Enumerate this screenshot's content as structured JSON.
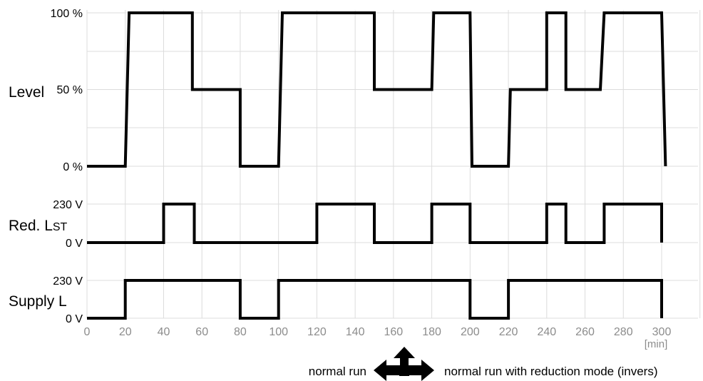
{
  "chart_data": {
    "type": "line",
    "x_unit": "[min]",
    "xlim": [
      0,
      320
    ],
    "x_ticks": [
      "0",
      "20",
      "40",
      "60",
      "80",
      "100",
      "120",
      "140",
      "160",
      "180",
      "200",
      "220",
      "240",
      "260",
      "280",
      "300"
    ],
    "panels": [
      {
        "label": "Level",
        "y_ticks": [
          "100 %",
          "50 %",
          "0 %"
        ],
        "ylim": [
          0,
          100
        ],
        "series": [
          {
            "x": [
              0,
              20,
              22,
              55,
              55,
              80,
              80,
              100,
              102,
              150,
              150,
              180,
              181,
              200,
              201,
              220,
              221,
              240,
              240,
              250,
              250,
              268,
              270,
              300,
              302
            ],
            "y": [
              0,
              0,
              100,
              100,
              50,
              50,
              0,
              0,
              100,
              100,
              50,
              50,
              100,
              100,
              0,
              0,
              50,
              50,
              100,
              100,
              50,
              50,
              100,
              100,
              0
            ]
          }
        ]
      },
      {
        "label": "Red. L",
        "label_sub": "ST",
        "y_ticks": [
          "230 V",
          "0 V"
        ],
        "ylim": [
          0,
          230
        ],
        "series": [
          {
            "x": [
              0,
              40,
              40,
              56,
              56,
              120,
              120,
              150,
              150,
              180,
              180,
              200,
              200,
              240,
              240,
              250,
              250,
              270,
              270,
              300,
              300
            ],
            "y": [
              0,
              0,
              230,
              230,
              0,
              0,
              230,
              230,
              0,
              0,
              230,
              230,
              0,
              0,
              230,
              230,
              0,
              0,
              230,
              230,
              0
            ]
          }
        ]
      },
      {
        "label": "Supply L",
        "y_ticks": [
          "230 V",
          "0 V"
        ],
        "ylim": [
          0,
          230
        ],
        "series": [
          {
            "x": [
              0,
              20,
              20,
              80,
              80,
              100,
              100,
              200,
              200,
              220,
              220,
              300,
              300
            ],
            "y": [
              0,
              0,
              230,
              230,
              0,
              0,
              230,
              230,
              0,
              0,
              230,
              230,
              0
            ]
          }
        ]
      }
    ],
    "legend": {
      "left_text": "normal run",
      "right_text": "normal run with reduction mode (invers)",
      "icon": "three-way-arrow-icon"
    },
    "grid": true
  }
}
